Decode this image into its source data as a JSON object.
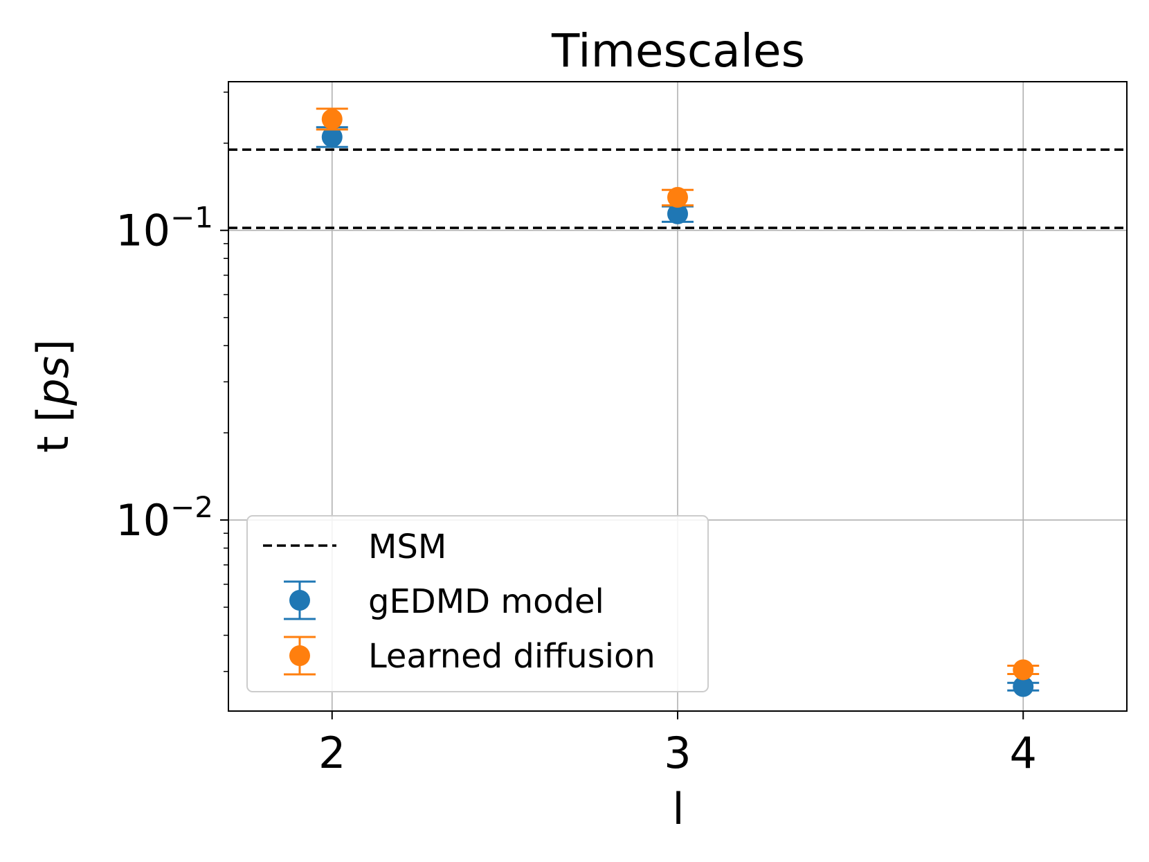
{
  "chart_data": {
    "type": "scatter",
    "title": "Timescales",
    "xlabel": "l",
    "ylabel_main": "t [",
    "ylabel_unit": "ps",
    "ylabel_close": "]",
    "y_scale": "log",
    "xlim": [
      1.7,
      4.3
    ],
    "ylim": [
      0.00219,
      0.326
    ],
    "x_ticks": [
      {
        "value": 2,
        "label": "2"
      },
      {
        "value": 3,
        "label": "3"
      },
      {
        "value": 4,
        "label": "4"
      }
    ],
    "y_ticks": [
      {
        "value": 0.1,
        "base": "10",
        "exp": "−1"
      },
      {
        "value": 0.01,
        "base": "10",
        "exp": "−2"
      }
    ],
    "grid": true,
    "legend_placement": "lower-left",
    "msm_lines": [
      0.19,
      0.102
    ],
    "series": [
      {
        "name": "gEDMD model",
        "color": "#1f77b4",
        "x": [
          2,
          3,
          4
        ],
        "y": [
          0.21,
          0.114,
          0.00266
        ],
        "yerr_low": [
          0.194,
          0.107,
          0.00258
        ],
        "yerr_high": [
          0.227,
          0.121,
          0.00274
        ]
      },
      {
        "name": "Learned diffusion",
        "color": "#ff7f0e",
        "x": [
          2,
          3,
          4
        ],
        "y": [
          0.242,
          0.13,
          0.00304
        ],
        "yerr_low": [
          0.223,
          0.122,
          0.00294
        ],
        "yerr_high": [
          0.263,
          0.138,
          0.00314
        ]
      }
    ],
    "legend": {
      "msm_label": "MSM"
    }
  }
}
